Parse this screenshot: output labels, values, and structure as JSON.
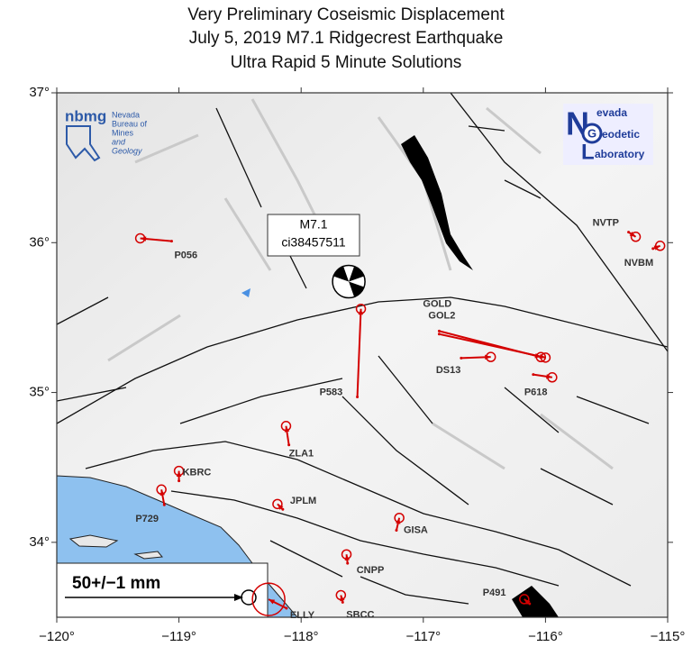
{
  "header": {
    "lines": [
      "Very Preliminary Coseismic Displacement",
      "July 5, 2019  M7.1 Ridgecrest Earthquake",
      "Ultra Rapid 5 Minute Solutions"
    ]
  },
  "map": {
    "lonlim": [
      -120,
      -115
    ],
    "latlim": [
      33.5,
      37
    ],
    "lonticks": [
      {
        "value": -120,
        "label": "−120°"
      },
      {
        "value": -119,
        "label": "−119°"
      },
      {
        "value": -118,
        "label": "−118°"
      },
      {
        "value": -117,
        "label": "−117°"
      },
      {
        "value": -116,
        "label": "−116°"
      },
      {
        "value": -115,
        "label": "−115°"
      }
    ],
    "latticks": [
      {
        "value": 34,
        "label": "34°"
      },
      {
        "value": 35,
        "label": "35°"
      },
      {
        "value": 36,
        "label": "36°"
      },
      {
        "value": 37,
        "label": "37°"
      }
    ],
    "vector_color": "#d40000"
  },
  "event": {
    "magnitude": "M7.1",
    "id": "ci38457511",
    "lon": -117.61,
    "lat": 35.74
  },
  "scale": {
    "label": "50+/−1 mm",
    "value": 50
  },
  "logos": {
    "nbmg": "nbmg",
    "nbmg_name": [
      "Nevada",
      "Bureau of",
      "Mines",
      "and",
      "Geology"
    ],
    "ngl": [
      "evada",
      "eodetic",
      "aboratory"
    ]
  },
  "stations": [
    {
      "name": "P056",
      "lon": -119.06,
      "lat": 36.01,
      "east": -8.8,
      "north": 0.8
    },
    {
      "name": "P583",
      "lon": -117.54,
      "lat": 34.97,
      "east": 1.0,
      "north": 24.7
    },
    {
      "name": "GOLD",
      "lon": -116.87,
      "lat": 35.41,
      "east": 28.5,
      "north": -7.3
    },
    {
      "name": "GOL2",
      "lon": -116.87,
      "lat": 35.39,
      "east": 29.8,
      "north": -6.6
    },
    {
      "name": "DS13",
      "lon": -116.69,
      "lat": 35.23,
      "east": 8.3,
      "north": 0.3
    },
    {
      "name": "P618",
      "lon": -116.1,
      "lat": 35.12,
      "east": 5.3,
      "north": -0.8
    },
    {
      "name": "NVTP",
      "lon": -115.32,
      "lat": 36.07,
      "east": 2.0,
      "north": -1.3
    },
    {
      "name": "NVBM",
      "lon": -115.12,
      "lat": 35.96,
      "east": 2.0,
      "north": 0.8
    },
    {
      "name": "ZLA1",
      "lon": -118.1,
      "lat": 34.65,
      "east": -0.8,
      "north": 5.3
    },
    {
      "name": "KBRC",
      "lon": -119.0,
      "lat": 34.41,
      "east": 0.0,
      "north": 2.8
    },
    {
      "name": "P729",
      "lon": -119.12,
      "lat": 34.25,
      "east": -0.8,
      "north": 4.3
    },
    {
      "name": "JPLM",
      "lon": -118.15,
      "lat": 34.22,
      "east": -1.5,
      "north": 1.5
    },
    {
      "name": "GISA",
      "lon": -117.22,
      "lat": 34.08,
      "east": 0.8,
      "north": 3.5
    },
    {
      "name": "CNPP",
      "lon": -117.62,
      "lat": 33.86,
      "east": -0.3,
      "north": 2.5
    },
    {
      "name": "SBCC",
      "lon": -117.66,
      "lat": 33.6,
      "east": -0.5,
      "north": 2.0
    },
    {
      "name": "P491",
      "lon": -116.13,
      "lat": 33.59,
      "east": -1.5,
      "north": 1.3
    },
    {
      "name": "ELLY",
      "lon": -118.12,
      "lat": 33.56,
      "east": -5.0,
      "north": 2.5
    }
  ]
}
